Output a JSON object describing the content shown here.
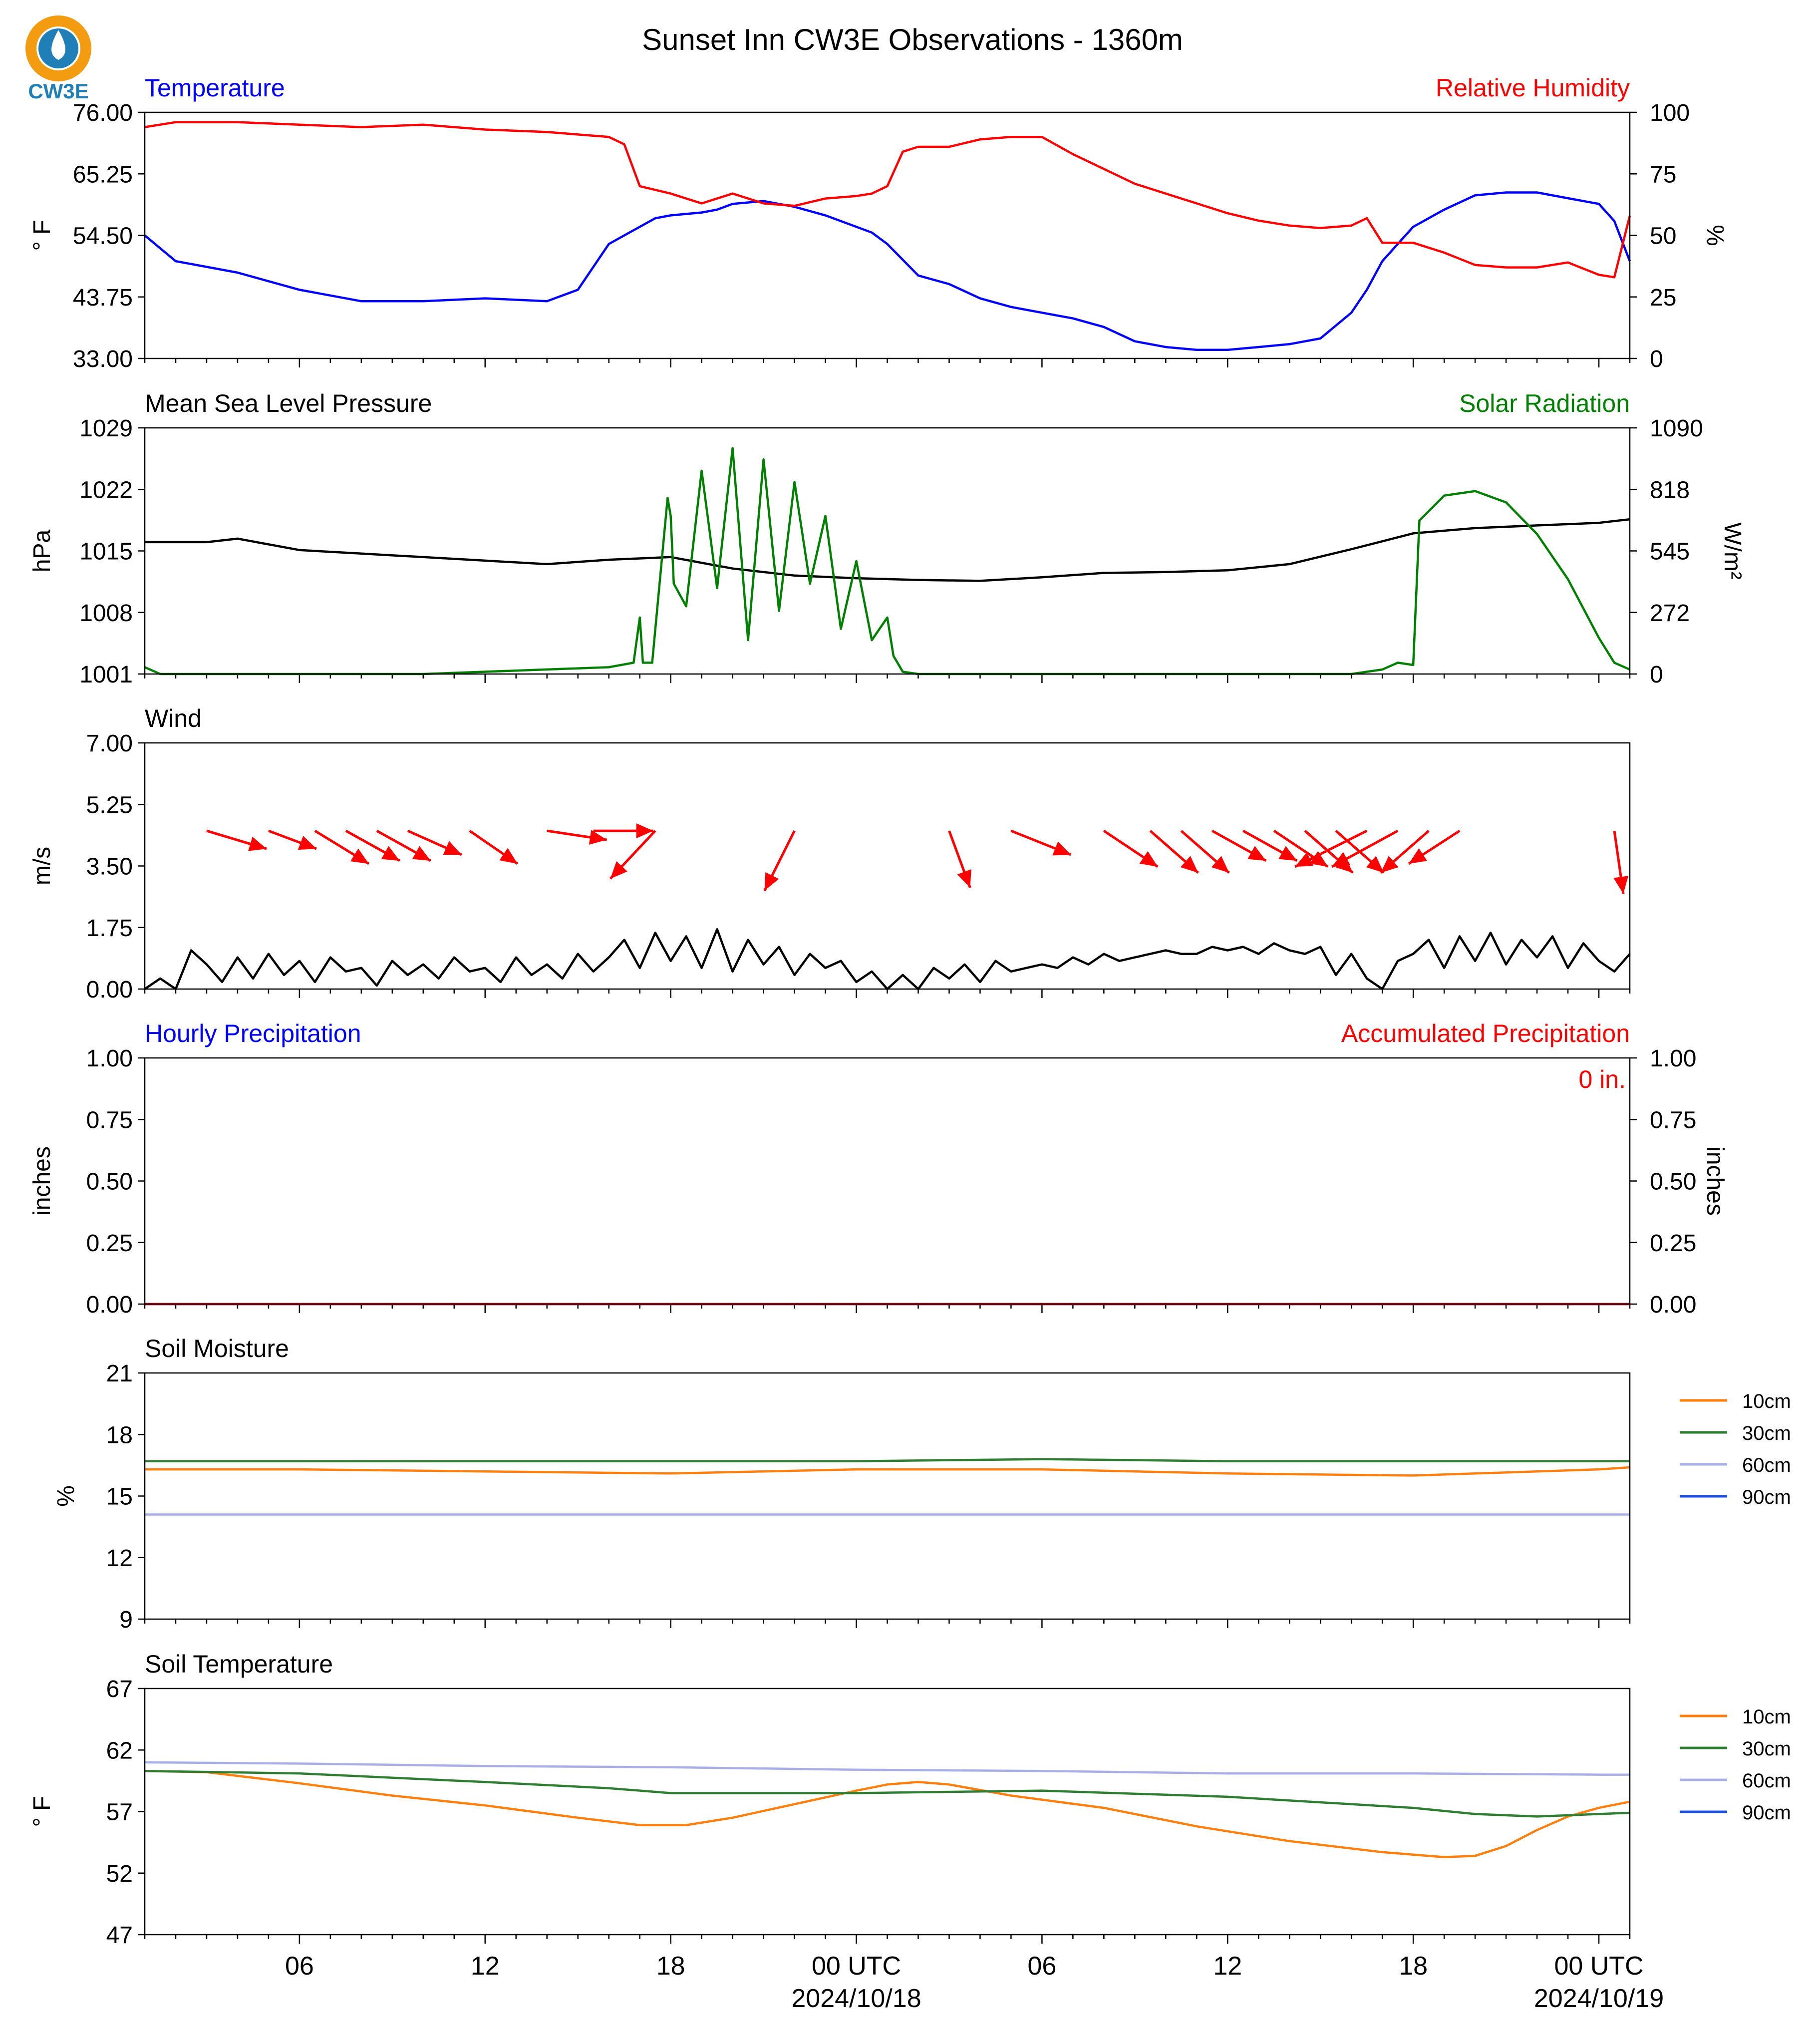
{
  "title": "Sunset Inn CW3E Observations - 1360m",
  "logo": {
    "text": "CW3E",
    "ring_color": "#f39c12",
    "drop_color": "#1f7fb6"
  },
  "x_axis": {
    "range_hours": [
      -23,
      25
    ],
    "tick_labels": [
      {
        "hour": -18,
        "label": "06"
      },
      {
        "hour": -12,
        "label": "12"
      },
      {
        "hour": -6,
        "label": "18"
      },
      {
        "hour": 0,
        "label": "00 UTC",
        "sublabel": "2024/10/18"
      },
      {
        "hour": 6,
        "label": "06"
      },
      {
        "hour": 12,
        "label": "12"
      },
      {
        "hour": 18,
        "label": "18"
      },
      {
        "hour": 24,
        "label": "00 UTC",
        "sublabel": "2024/10/19"
      }
    ]
  },
  "chart_data": [
    {
      "type": "line",
      "panel": "temperature_humidity",
      "title_left": "Temperature",
      "title_right": "Relative Humidity",
      "ylabel_left": "° F",
      "ylabel_right": "%",
      "ylim_left": [
        33.0,
        76.0
      ],
      "yticks_left": [
        "33.00",
        "43.75",
        "54.50",
        "65.25",
        "76.00"
      ],
      "ylim_right": [
        0,
        100
      ],
      "yticks_right": [
        "0",
        "25",
        "50",
        "75",
        "100"
      ],
      "series": [
        {
          "axis": "left",
          "color": "#0000ff",
          "x": [
            -23,
            -22,
            -20,
            -18,
            -16,
            -14,
            -12,
            -10,
            -9,
            -8,
            -7,
            -6.5,
            -6,
            -5,
            -4.5,
            -4,
            -3,
            -2,
            -1,
            0,
            0.5,
            1,
            2,
            3,
            4,
            5,
            6,
            7,
            8,
            9,
            10,
            11,
            12,
            13,
            14,
            15,
            16,
            16.5,
            17,
            18,
            19,
            20,
            21,
            22,
            23,
            24,
            24.5,
            25
          ],
          "y": [
            54.5,
            50.0,
            48.0,
            45.0,
            43.0,
            43.0,
            43.5,
            43.0,
            45.0,
            53.0,
            56.0,
            57.5,
            58.0,
            58.5,
            59.0,
            60.0,
            60.5,
            59.5,
            58.0,
            56.0,
            55.0,
            53.0,
            47.5,
            46.0,
            43.5,
            42.0,
            41.0,
            40.0,
            38.5,
            36.0,
            35.0,
            34.5,
            34.5,
            35.0,
            35.5,
            36.5,
            41.0,
            45.0,
            50.0,
            56.0,
            59.0,
            61.5,
            62.0,
            62.0,
            61.0,
            60.0,
            57.0,
            50.0
          ]
        },
        {
          "axis": "right",
          "color": "#ff0000",
          "x": [
            -23,
            -22,
            -20,
            -18,
            -16,
            -14,
            -13,
            -12,
            -10,
            -9,
            -8,
            -7.5,
            -7,
            -6,
            -5,
            -4,
            -3,
            -2,
            -1,
            0,
            0.5,
            1,
            1.5,
            2,
            3,
            4,
            5,
            6,
            7,
            8,
            9,
            10,
            11,
            12,
            13,
            14,
            15,
            16,
            16.5,
            17,
            18,
            19,
            20,
            21,
            22,
            23,
            24,
            24.5,
            25
          ],
          "y": [
            94,
            96,
            96,
            95,
            94,
            95,
            94,
            93,
            92,
            91,
            90,
            87,
            70,
            67,
            63,
            67,
            63,
            62,
            65,
            66,
            67,
            70,
            84,
            86,
            86,
            89,
            90,
            90,
            83,
            77,
            71,
            67,
            63,
            59,
            56,
            54,
            53,
            54,
            57,
            47,
            47,
            43,
            38,
            37,
            37,
            39,
            34,
            33,
            58
          ]
        }
      ]
    },
    {
      "type": "line",
      "panel": "pressure_solar",
      "title_left": "Mean Sea Level Pressure",
      "title_right": "Solar Radiation",
      "ylabel_left": "hPa",
      "ylabel_right": "W/m²",
      "ylim_left": [
        1001,
        1029
      ],
      "yticks_left": [
        "1001",
        "1008",
        "1015",
        "1022",
        "1029"
      ],
      "ylim_right": [
        0,
        1090
      ],
      "yticks_right": [
        "0",
        "272",
        "545",
        "818",
        "1090"
      ],
      "series": [
        {
          "axis": "left",
          "color": "#000000",
          "x": [
            -23,
            -21,
            -20,
            -18,
            -16,
            -14,
            -12,
            -10,
            -8,
            -6,
            -4,
            -2,
            0,
            2,
            4,
            6,
            8,
            10,
            12,
            14,
            16,
            18,
            20,
            22,
            24,
            25
          ],
          "y": [
            1016.0,
            1016.0,
            1016.4,
            1015.1,
            1014.7,
            1014.3,
            1013.9,
            1013.5,
            1014.0,
            1014.3,
            1013.0,
            1012.2,
            1011.9,
            1011.7,
            1011.6,
            1012.0,
            1012.5,
            1012.6,
            1012.8,
            1013.5,
            1015.2,
            1017.0,
            1017.6,
            1017.9,
            1018.2,
            1018.6
          ]
        },
        {
          "axis": "right",
          "color": "#008000",
          "x": [
            -23,
            -22.5,
            -16,
            -14,
            -8,
            -7.2,
            -7.0,
            -6.9,
            -6.6,
            -6.1,
            -6.0,
            -5.9,
            -5.5,
            -5.0,
            -4.5,
            -4.0,
            -3.5,
            -3.0,
            -2.5,
            -2.0,
            -1.5,
            -1.0,
            -0.5,
            0,
            0.5,
            1.0,
            1.2,
            1.5,
            2.0,
            3,
            8,
            14,
            16,
            17.0,
            17.5,
            18.0,
            18.2,
            19.0,
            20.0,
            21.0,
            22.0,
            23.0,
            24.0,
            24.5,
            25.0
          ],
          "y": [
            30,
            0,
            0,
            0,
            30,
            50,
            250,
            50,
            50,
            780,
            700,
            400,
            300,
            900,
            380,
            1000,
            150,
            950,
            280,
            850,
            400,
            700,
            200,
            500,
            150,
            250,
            80,
            10,
            0,
            0,
            0,
            0,
            0,
            20,
            50,
            40,
            680,
            790,
            810,
            760,
            620,
            420,
            160,
            50,
            20
          ]
        }
      ]
    },
    {
      "type": "line",
      "panel": "wind",
      "title_left": "Wind",
      "ylabel_left": "m/s",
      "ylim_left": [
        0.0,
        7.0
      ],
      "yticks_left": [
        "0.00",
        "1.75",
        "3.50",
        "5.25",
        "7.00"
      ],
      "series": [
        {
          "axis": "left",
          "color": "#000000",
          "x": [
            -23,
            -22.5,
            -22,
            -21.5,
            -21,
            -20.5,
            -20,
            -19.5,
            -19,
            -18.5,
            -18,
            -17.5,
            -17,
            -16.5,
            -16,
            -15.5,
            -15,
            -14.5,
            -14,
            -13.5,
            -13,
            -12.5,
            -12,
            -11.5,
            -11,
            -10.5,
            -10,
            -9.5,
            -9,
            -8.5,
            -8,
            -7.5,
            -7,
            -6.5,
            -6,
            -5.5,
            -5,
            -4.5,
            -4,
            -3.5,
            -3,
            -2.5,
            -2,
            -1.5,
            -1,
            -0.5,
            0,
            0.5,
            1,
            1.5,
            2,
            2.5,
            3,
            3.5,
            4,
            4.5,
            5,
            5.5,
            6,
            6.5,
            7,
            7.5,
            8,
            8.5,
            9,
            9.5,
            10,
            10.5,
            11,
            11.5,
            12,
            12.5,
            13,
            13.5,
            14,
            14.5,
            15,
            15.5,
            16,
            16.5,
            17,
            17.5,
            18,
            18.5,
            19,
            19.5,
            20,
            20.5,
            21,
            21.5,
            22,
            22.5,
            23,
            23.5,
            24,
            24.5,
            25
          ],
          "y": [
            0.0,
            0.3,
            0.0,
            1.1,
            0.7,
            0.2,
            0.9,
            0.3,
            1.0,
            0.4,
            0.8,
            0.2,
            0.9,
            0.5,
            0.6,
            0.1,
            0.8,
            0.4,
            0.7,
            0.3,
            0.9,
            0.5,
            0.6,
            0.2,
            0.9,
            0.4,
            0.7,
            0.3,
            1.0,
            0.5,
            0.9,
            1.4,
            0.6,
            1.6,
            0.8,
            1.5,
            0.6,
            1.7,
            0.5,
            1.4,
            0.7,
            1.2,
            0.4,
            1.0,
            0.6,
            0.8,
            0.2,
            0.5,
            0.0,
            0.4,
            0.0,
            0.6,
            0.3,
            0.7,
            0.2,
            0.8,
            0.5,
            0.6,
            0.7,
            0.6,
            0.9,
            0.7,
            1.0,
            0.8,
            0.9,
            1.0,
            1.1,
            1.0,
            1.0,
            1.2,
            1.1,
            1.2,
            1.0,
            1.3,
            1.1,
            1.0,
            1.2,
            0.4,
            1.0,
            0.3,
            0.0,
            0.8,
            1.0,
            1.4,
            0.6,
            1.5,
            0.8,
            1.6,
            0.7,
            1.4,
            0.9,
            1.5,
            0.6,
            1.3,
            0.8,
            0.5,
            1.0
          ]
        }
      ],
      "vectors": {
        "color": "#ff0000",
        "x": [
          -21,
          -19,
          -17.5,
          -16.5,
          -15.5,
          -14.5,
          -12.5,
          -10,
          -8.5,
          -6.5,
          -2,
          3,
          5,
          8,
          9.5,
          10.5,
          11.5,
          12.5,
          13.5,
          14.5,
          15.5,
          16.5,
          17.5,
          18.5,
          19.5,
          24.5
        ],
        "y": [
          4.5,
          4.5,
          4.5,
          4.5,
          4.5,
          4.5,
          4.5,
          4.5,
          4.5,
          4.5,
          4.5,
          4.5,
          4.5,
          4.5,
          4.5,
          4.5,
          4.5,
          4.5,
          4.5,
          4.5,
          4.5,
          4.5,
          4.5,
          4.5,
          4.5,
          4.5
        ],
        "u": [
          2.0,
          1.6,
          1.8,
          1.8,
          1.8,
          1.8,
          1.6,
          2.0,
          2.0,
          -1.5,
          -1.0,
          0.7,
          2.0,
          1.8,
          1.6,
          1.6,
          1.8,
          1.8,
          1.8,
          1.6,
          1.6,
          -2.4,
          -2.2,
          -1.6,
          -1.7,
          0.3
        ],
        "v": [
          -0.6,
          -0.6,
          -1.1,
          -1.0,
          -1.0,
          -0.8,
          -1.1,
          -0.3,
          0.0,
          -1.6,
          -2.0,
          -1.9,
          -0.8,
          -1.2,
          -1.4,
          -1.4,
          -1.0,
          -1.0,
          -1.2,
          -1.4,
          -1.4,
          -1.2,
          -1.2,
          -1.4,
          -1.1,
          -2.1
        ]
      }
    },
    {
      "type": "line",
      "panel": "precipitation",
      "title_left": "Hourly Precipitation",
      "title_right": "Accumulated Precipitation",
      "annotation": "0 in.",
      "ylabel_left": "inches",
      "ylabel_right": "inches",
      "ylim_left": [
        0.0,
        1.0
      ],
      "yticks_left": [
        "0.00",
        "0.25",
        "0.50",
        "0.75",
        "1.00"
      ],
      "ylim_right": [
        0.0,
        1.0
      ],
      "yticks_right": [
        "0.00",
        "0.25",
        "0.50",
        "0.75",
        "1.00"
      ],
      "series": [
        {
          "axis": "left",
          "color": "#0000ff",
          "x": [
            -23,
            25
          ],
          "y": [
            0.0,
            0.0
          ]
        },
        {
          "axis": "right",
          "color": "#ff0000",
          "x": [
            -23,
            25
          ],
          "y": [
            0.0,
            0.0
          ]
        }
      ]
    },
    {
      "type": "line",
      "panel": "soil_moisture",
      "title_left": "Soil Moisture",
      "ylabel_left": "%",
      "ylim_left": [
        9,
        21
      ],
      "yticks_left": [
        "9",
        "12",
        "15",
        "18",
        "21"
      ],
      "legend": "right",
      "series": [
        {
          "name": "10cm",
          "color": "#ff7f0e",
          "x": [
            -23,
            -18,
            -12,
            -6,
            0,
            6,
            12,
            18,
            24,
            25
          ],
          "y": [
            16.3,
            16.3,
            16.2,
            16.1,
            16.3,
            16.3,
            16.1,
            16.0,
            16.3,
            16.4
          ]
        },
        {
          "name": "30cm",
          "color": "#2e7d32",
          "x": [
            -23,
            -18,
            -12,
            -6,
            0,
            6,
            12,
            18,
            24,
            25
          ],
          "y": [
            16.7,
            16.7,
            16.7,
            16.7,
            16.7,
            16.8,
            16.7,
            16.7,
            16.7,
            16.7
          ]
        },
        {
          "name": "60cm",
          "color": "#a9aee6",
          "x": [
            -23,
            -18,
            -12,
            -6,
            0,
            6,
            12,
            18,
            24,
            25
          ],
          "y": [
            14.1,
            14.1,
            14.1,
            14.1,
            14.1,
            14.1,
            14.1,
            14.1,
            14.1,
            14.1
          ]
        },
        {
          "name": "90cm",
          "color": "#1f4fe0",
          "x": [],
          "y": []
        }
      ]
    },
    {
      "type": "line",
      "panel": "soil_temperature",
      "title_left": "Soil Temperature",
      "ylabel_left": "° F",
      "ylim_left": [
        47,
        67
      ],
      "yticks_left": [
        "47",
        "52",
        "57",
        "62",
        "67"
      ],
      "legend": "right",
      "series": [
        {
          "name": "10cm",
          "color": "#ff7f0e",
          "x": [
            -23,
            -21,
            -18,
            -15,
            -12,
            -9,
            -7,
            -5.5,
            -4,
            -2,
            0,
            1,
            2,
            3,
            5,
            8,
            11,
            14,
            17,
            19,
            20,
            21,
            22,
            23,
            24,
            25
          ],
          "y": [
            60.3,
            60.2,
            59.3,
            58.3,
            57.5,
            56.5,
            55.9,
            55.9,
            56.5,
            57.6,
            58.7,
            59.2,
            59.4,
            59.2,
            58.3,
            57.3,
            55.8,
            54.6,
            53.7,
            53.3,
            53.4,
            54.2,
            55.5,
            56.6,
            57.3,
            57.8
          ]
        },
        {
          "name": "30cm",
          "color": "#2e7d32",
          "x": [
            -23,
            -18,
            -12,
            -8,
            -6,
            0,
            6,
            12,
            18,
            20,
            22,
            24,
            25
          ],
          "y": [
            60.3,
            60.1,
            59.4,
            58.9,
            58.5,
            58.5,
            58.7,
            58.2,
            57.3,
            56.8,
            56.6,
            56.8,
            56.9
          ]
        },
        {
          "name": "60cm",
          "color": "#a9aee6",
          "x": [
            -23,
            -18,
            -12,
            -6,
            0,
            6,
            12,
            18,
            24,
            25
          ],
          "y": [
            61.0,
            60.9,
            60.7,
            60.6,
            60.4,
            60.3,
            60.1,
            60.1,
            60.0,
            60.0
          ]
        },
        {
          "name": "90cm",
          "color": "#1f4fe0",
          "x": [],
          "y": []
        }
      ]
    }
  ]
}
